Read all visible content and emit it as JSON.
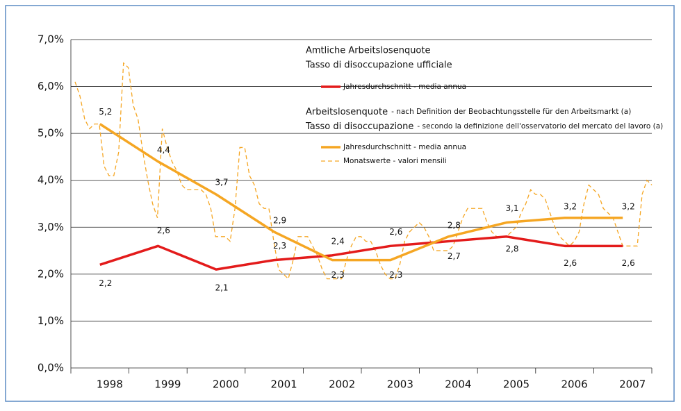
{
  "chart_data": {
    "type": "line",
    "categories": [
      "1998",
      "1999",
      "2000",
      "2001",
      "2002",
      "2003",
      "2004",
      "2005",
      "2006",
      "2007"
    ],
    "series": [
      {
        "name": "Jahresdurchschnitt - media annua",
        "color": "#e31b1b",
        "values": [
          2.2,
          2.6,
          2.1,
          2.3,
          2.4,
          2.6,
          2.7,
          2.8,
          2.6,
          2.6
        ],
        "value_labels": [
          "2,2",
          "2,6",
          "2,1",
          "2,3",
          "2,4",
          "2,6",
          "2,7",
          "2,8",
          "2,6",
          "2,6"
        ]
      },
      {
        "name": "Jahresdurchschnitt - media annua",
        "color": "#f5a623",
        "values": [
          5.2,
          4.4,
          3.7,
          2.9,
          2.3,
          2.3,
          2.8,
          3.1,
          3.2,
          3.2
        ],
        "value_labels": [
          "5,2",
          "4,4",
          "3,7",
          "2,9",
          "2,3",
          "2,3",
          "2,8",
          "3,1",
          "3,2",
          "3,2"
        ]
      }
    ],
    "monthly_series": {
      "name": "Monatswerte - valori mensili",
      "color": "#f5a623",
      "dashed": true,
      "values": [
        6.1,
        5.8,
        5.3,
        5.1,
        5.2,
        5.2,
        4.3,
        4.1,
        4.1,
        4.6,
        6.5,
        6.4,
        5.6,
        5.3,
        4.6,
        4.0,
        3.5,
        3.2,
        5.1,
        4.7,
        4.4,
        4.2,
        3.9,
        3.8,
        3.8,
        3.8,
        3.8,
        3.7,
        3.4,
        2.8,
        2.8,
        2.8,
        2.7,
        3.4,
        4.7,
        4.7,
        4.1,
        3.9,
        3.5,
        3.4,
        3.4,
        2.7,
        2.1,
        2.0,
        1.9,
        2.3,
        2.8,
        2.8,
        2.8,
        2.6,
        2.4,
        2.1,
        1.9,
        1.9,
        1.9,
        1.9,
        2.3,
        2.6,
        2.8,
        2.8,
        2.7,
        2.7,
        2.5,
        2.2,
        2.0,
        1.9,
        1.9,
        2.2,
        2.7,
        2.9,
        3.0,
        3.1,
        3.0,
        2.8,
        2.5,
        2.5,
        2.5,
        2.5,
        2.6,
        2.9,
        3.2,
        3.4,
        3.4,
        3.4,
        3.4,
        3.1,
        2.9,
        2.8,
        2.8,
        2.8,
        2.9,
        3.0,
        3.3,
        3.5,
        3.8,
        3.7,
        3.7,
        3.6,
        3.3,
        3.0,
        2.8,
        2.7,
        2.6,
        2.7,
        2.9,
        3.5,
        3.9,
        3.8,
        3.7,
        3.4,
        3.3,
        3.2,
        2.9,
        2.6,
        2.6,
        2.6,
        2.6,
        3.7,
        4.0,
        3.9
      ]
    },
    "legend_headings": [
      {
        "title": "Amtliche Arbeitslosenquote",
        "subtitle": "Tasso di disoccupazione ufficiale"
      },
      {
        "title": "Arbeitslosenquote",
        "title_note": "- nach Definition der Beobachtungsstelle für den Arbeitsmarkt (a)",
        "subtitle": "Tasso di disoccupazione",
        "subtitle_note": "- secondo la definizione dell'osservatorio del mercato del lavoro (a)"
      }
    ],
    "ylim": [
      0,
      7
    ],
    "yticks": [
      {
        "value": 0,
        "label": "0,0%"
      },
      {
        "value": 1,
        "label": "1,0%"
      },
      {
        "value": 2,
        "label": "2,0%"
      },
      {
        "value": 3,
        "label": "3,0%"
      },
      {
        "value": 4,
        "label": "4,0%"
      },
      {
        "value": 5,
        "label": "5,0%"
      },
      {
        "value": 6,
        "label": "6,0%"
      },
      {
        "value": 7,
        "label": "7,0%"
      }
    ],
    "grid": true
  }
}
